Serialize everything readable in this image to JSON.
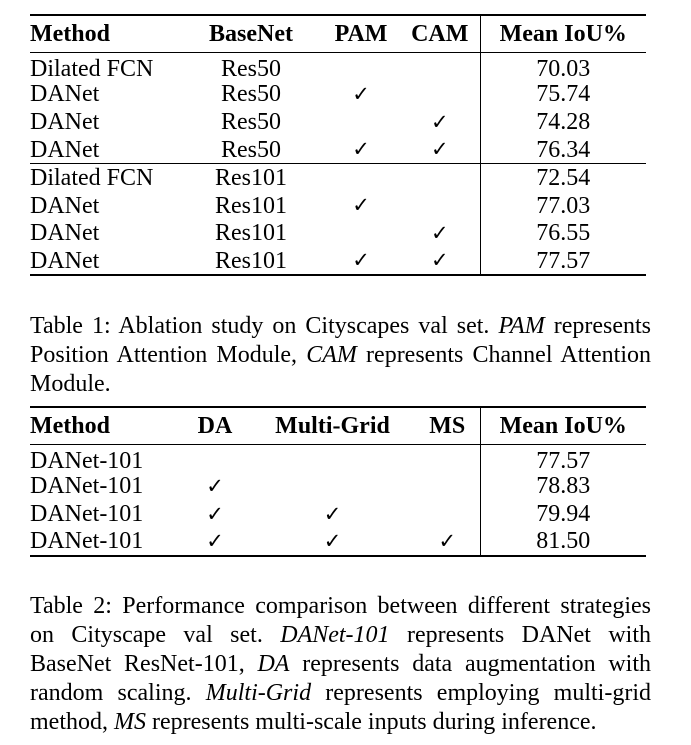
{
  "table1": {
    "headers": [
      "Method",
      "BaseNet",
      "PAM",
      "CAM",
      "Mean IoU%"
    ],
    "rows": [
      [
        "Dilated FCN",
        "Res50",
        "",
        "",
        "70.03"
      ],
      [
        "DANet",
        "Res50",
        "✓",
        "",
        "75.74"
      ],
      [
        "DANet",
        "Res50",
        "",
        "✓",
        "74.28"
      ],
      [
        "DANet",
        "Res50",
        "✓",
        "✓",
        "76.34"
      ],
      [
        "Dilated FCN",
        "Res101",
        "",
        "",
        "72.54"
      ],
      [
        "DANet",
        "Res101",
        "✓",
        "",
        "77.03"
      ],
      [
        "DANet",
        "Res101",
        "",
        "✓",
        "76.55"
      ],
      [
        "DANet",
        "Res101",
        "✓",
        "✓",
        "77.57"
      ]
    ],
    "caption": {
      "label": "Table 1: Ablation study on Cityscapes val set.",
      "pam": "PAM",
      "t1": "represents Position Attention Module,",
      "cam": "CAM",
      "t2": "represents Channel Attention Module."
    }
  },
  "table2": {
    "headers": [
      "Method",
      "DA",
      "Multi-Grid",
      "MS",
      "Mean IoU%"
    ],
    "rows": [
      [
        "DANet-101",
        "",
        "",
        "",
        "77.57"
      ],
      [
        "DANet-101",
        "✓",
        "",
        "",
        "78.83"
      ],
      [
        "DANet-101",
        "✓",
        "✓",
        "",
        "79.94"
      ],
      [
        "DANet-101",
        "✓",
        "✓",
        "✓",
        "81.50"
      ]
    ],
    "caption": {
      "label": "Table 2: Performance comparison between different strategies on Cityscape val set.",
      "danet": "DANet-101",
      "t1": "represents DANet with BaseNet ResNet-101,",
      "da": "DA",
      "t2": "represents data augmentation with random scaling.",
      "mg": "Multi-Grid",
      "t3": "represents employing multi-grid method,",
      "ms": "MS",
      "t4": "represents multi-scale inputs during inference."
    }
  }
}
